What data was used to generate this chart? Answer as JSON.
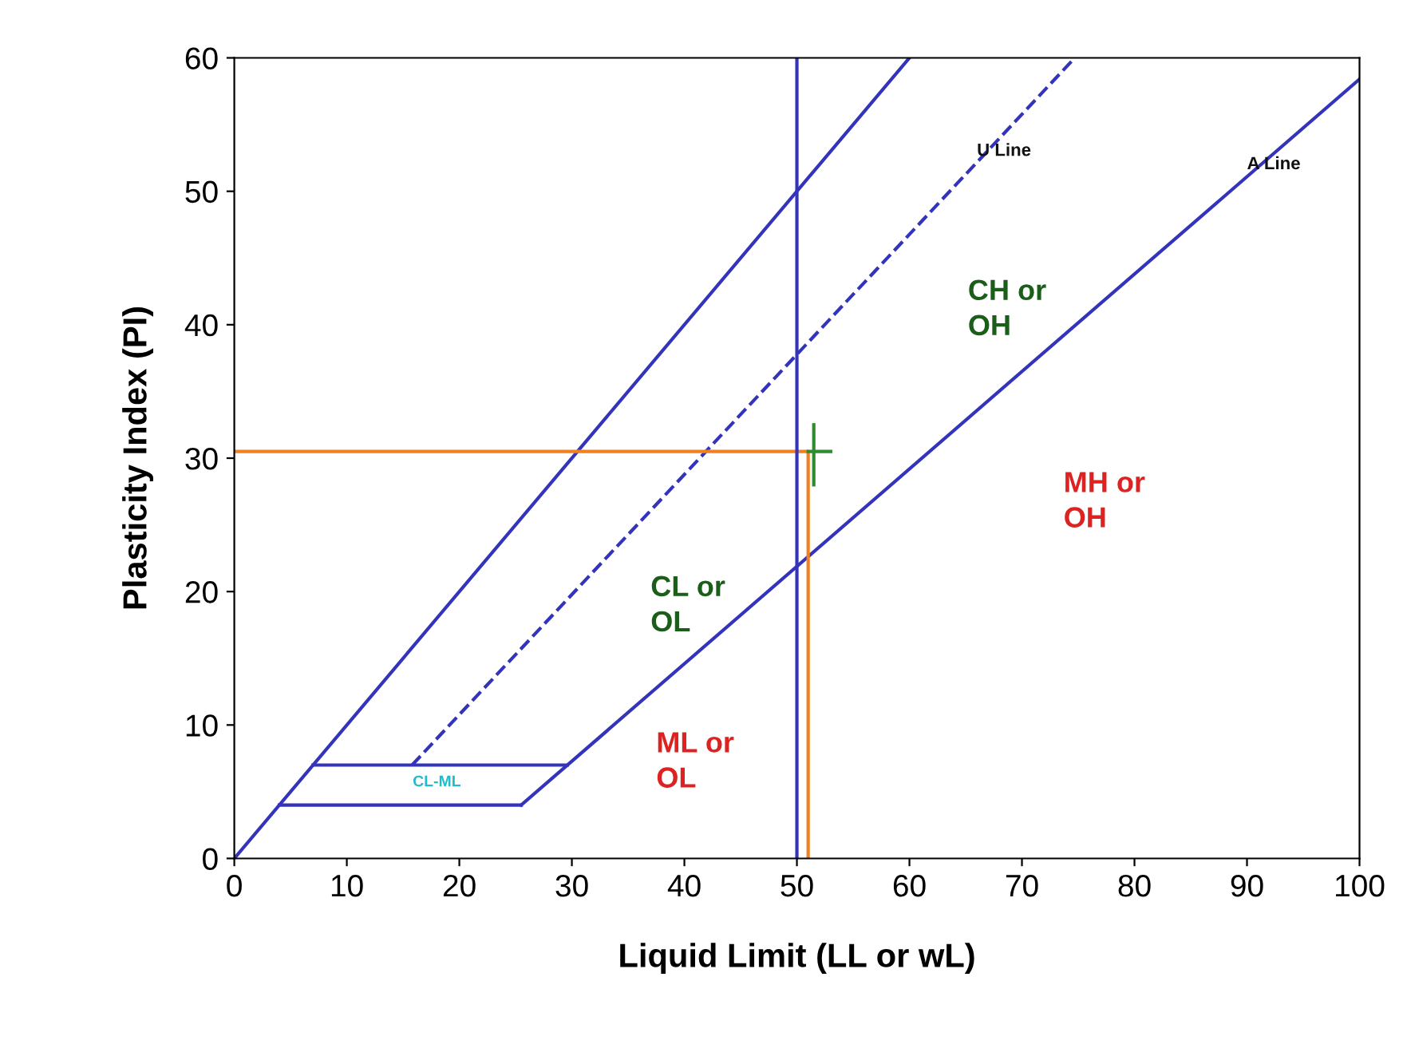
{
  "chart_data": {
    "type": "line",
    "xlabel": "Liquid Limit (LL or wL)",
    "ylabel": "Plasticity Index (PI)",
    "xlim": [
      0,
      100
    ],
    "ylim": [
      0,
      60
    ],
    "xticks": [
      0,
      10,
      20,
      30,
      40,
      50,
      60,
      70,
      80,
      90,
      100
    ],
    "yticks": [
      0,
      10,
      20,
      30,
      40,
      50,
      60
    ],
    "grid": false,
    "series": [
      {
        "color": "#3333bb",
        "x": [
          0,
          60
        ],
        "values": [
          0,
          60
        ],
        "line_style": "solid"
      },
      {
        "color": "#3333bb",
        "x": [
          15.8,
          74.7
        ],
        "values": [
          7,
          60
        ],
        "line_style": "dashed"
      },
      {
        "color": "#3333bb",
        "x": [
          25.5,
          100
        ],
        "values": [
          4,
          58.4
        ],
        "line_style": "solid"
      },
      {
        "color": "#3333bb",
        "x": [
          7,
          29.6
        ],
        "values": [
          7,
          7
        ],
        "line_style": "solid"
      },
      {
        "color": "#3333bb",
        "x": [
          4,
          25.5
        ],
        "values": [
          4,
          4
        ],
        "line_style": "solid"
      },
      {
        "color": "#f08020",
        "x": [
          0,
          51,
          51
        ],
        "values": [
          30.5,
          30.5,
          0
        ],
        "line_style": "solid"
      },
      {
        "color": "#2e8b2e",
        "x": [
          51.5,
          51.5
        ],
        "values": [
          28,
          32.5
        ],
        "line_style": "solid"
      },
      {
        "color": "#2e8b2e",
        "x": [
          51,
          53
        ],
        "values": [
          30.5,
          30.5
        ],
        "line_style": "solid"
      }
    ],
    "ref_lines": [
      {
        "axis": "x",
        "value": 50,
        "color": "#3333bb"
      }
    ],
    "annotations": [
      {
        "text": "U Line",
        "x": 66,
        "y": 53
      },
      {
        "text": "A Line",
        "x": 90,
        "y": 52
      },
      "CH or\nOH",
      "MH or\nOH",
      "CL or\nOL",
      "ML or\nOL",
      "CL-ML"
    ]
  }
}
